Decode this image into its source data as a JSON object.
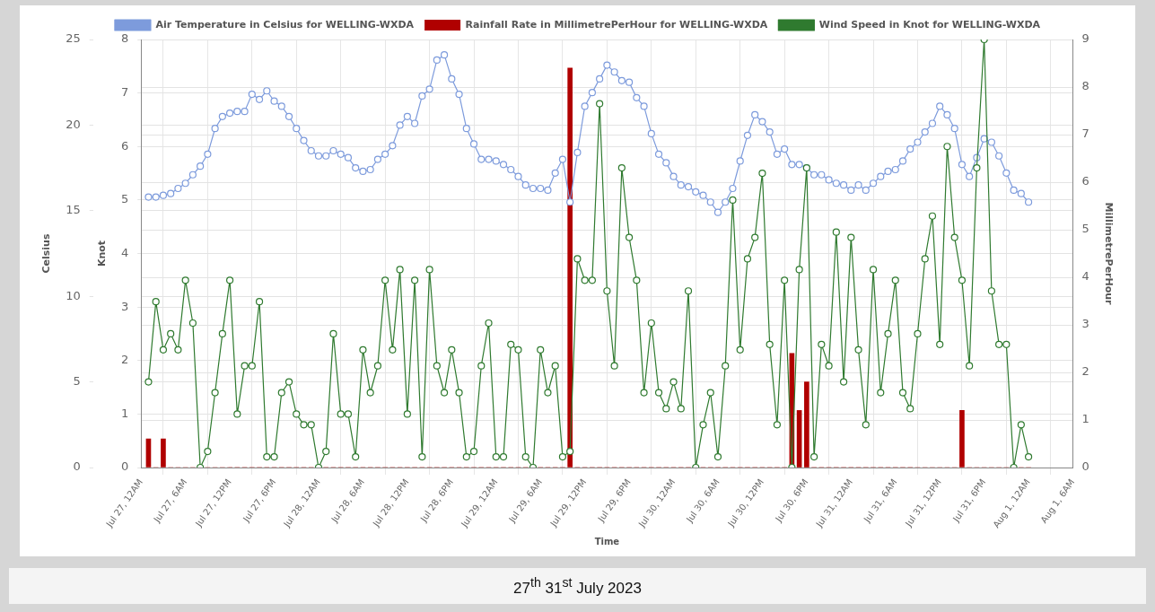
{
  "chart_data": {
    "type": "line",
    "xlabel": "Time",
    "ylabel": "Celsius",
    "y2label": "MillimetrePerHour",
    "y3label": "Knot",
    "x": [
      "2023-07-27T01:00",
      "2023-07-27T02:00",
      "2023-07-27T03:00",
      "2023-07-27T04:00",
      "2023-07-27T05:00",
      "2023-07-27T06:00",
      "2023-07-27T07:00",
      "2023-07-27T08:00",
      "2023-07-27T09:00",
      "2023-07-27T10:00",
      "2023-07-27T11:00",
      "2023-07-27T12:00",
      "2023-07-27T13:00",
      "2023-07-27T14:00",
      "2023-07-27T15:00",
      "2023-07-27T16:00",
      "2023-07-27T17:00",
      "2023-07-27T18:00",
      "2023-07-27T19:00",
      "2023-07-27T20:00",
      "2023-07-27T21:00",
      "2023-07-27T22:00",
      "2023-07-27T23:00",
      "2023-07-28T00:00",
      "2023-07-28T01:00",
      "2023-07-28T02:00",
      "2023-07-28T03:00",
      "2023-07-28T04:00",
      "2023-07-28T05:00",
      "2023-07-28T06:00",
      "2023-07-28T07:00",
      "2023-07-28T08:00",
      "2023-07-28T09:00",
      "2023-07-28T10:00",
      "2023-07-28T11:00",
      "2023-07-28T12:00",
      "2023-07-28T13:00",
      "2023-07-28T14:00",
      "2023-07-28T15:00",
      "2023-07-28T16:00",
      "2023-07-28T17:00",
      "2023-07-28T18:00",
      "2023-07-28T19:00",
      "2023-07-28T20:00",
      "2023-07-28T21:00",
      "2023-07-28T22:00",
      "2023-07-28T23:00",
      "2023-07-29T00:00",
      "2023-07-29T01:00",
      "2023-07-29T02:00",
      "2023-07-29T03:00",
      "2023-07-29T04:00",
      "2023-07-29T05:00",
      "2023-07-29T06:00",
      "2023-07-29T07:00",
      "2023-07-29T08:00",
      "2023-07-29T09:00",
      "2023-07-29T10:00",
      "2023-07-29T11:00",
      "2023-07-29T12:00",
      "2023-07-29T13:00",
      "2023-07-29T14:00",
      "2023-07-29T15:00",
      "2023-07-29T16:00",
      "2023-07-29T17:00",
      "2023-07-29T18:00",
      "2023-07-29T19:00",
      "2023-07-29T20:00",
      "2023-07-29T21:00",
      "2023-07-29T22:00",
      "2023-07-29T23:00",
      "2023-07-30T00:00",
      "2023-07-30T01:00",
      "2023-07-30T02:00",
      "2023-07-30T03:00",
      "2023-07-30T04:00",
      "2023-07-30T05:00",
      "2023-07-30T06:00",
      "2023-07-30T07:00",
      "2023-07-30T08:00",
      "2023-07-30T09:00",
      "2023-07-30T10:00",
      "2023-07-30T11:00",
      "2023-07-30T12:00",
      "2023-07-30T13:00",
      "2023-07-30T14:00",
      "2023-07-30T15:00",
      "2023-07-30T16:00",
      "2023-07-30T17:00",
      "2023-07-30T18:00",
      "2023-07-30T19:00",
      "2023-07-30T20:00",
      "2023-07-30T21:00",
      "2023-07-30T22:00",
      "2023-07-30T23:00",
      "2023-07-31T00:00",
      "2023-07-31T01:00",
      "2023-07-31T02:00",
      "2023-07-31T03:00",
      "2023-07-31T04:00",
      "2023-07-31T05:00",
      "2023-07-31T06:00",
      "2023-07-31T07:00",
      "2023-07-31T08:00",
      "2023-07-31T09:00",
      "2023-07-31T10:00",
      "2023-07-31T11:00",
      "2023-07-31T12:00",
      "2023-07-31T13:00",
      "2023-07-31T14:00",
      "2023-07-31T15:00",
      "2023-07-31T16:00",
      "2023-07-31T17:00",
      "2023-07-31T18:00",
      "2023-07-31T19:00",
      "2023-07-31T20:00",
      "2023-07-31T21:00",
      "2023-07-31T22:00",
      "2023-07-31T23:00",
      "2023-08-01T00:00"
    ],
    "series": [
      {
        "name": "Air Temperature in Celsius for WELLING-WXDA",
        "axis": "y",
        "color": "#7d9bdc",
        "values": [
          15.8,
          15.8,
          15.9,
          16.0,
          16.3,
          16.6,
          17.1,
          17.6,
          18.3,
          19.8,
          20.5,
          20.7,
          20.8,
          20.8,
          21.8,
          21.5,
          22.0,
          21.4,
          21.1,
          20.5,
          19.8,
          19.1,
          18.5,
          18.2,
          18.2,
          18.5,
          18.3,
          18.1,
          17.5,
          17.3,
          17.4,
          18.0,
          18.3,
          18.8,
          20.0,
          20.5,
          20.1,
          21.7,
          22.1,
          23.8,
          24.1,
          22.7,
          21.8,
          19.8,
          18.9,
          18.0,
          18.0,
          17.9,
          17.7,
          17.4,
          17.0,
          16.5,
          16.3,
          16.3,
          16.2,
          17.2,
          18.0,
          15.5,
          18.4,
          21.1,
          21.9,
          22.7,
          23.5,
          23.1,
          22.6,
          22.5,
          21.6,
          21.1,
          19.5,
          18.3,
          17.8,
          17.0,
          16.5,
          16.4,
          16.1,
          15.9,
          15.5,
          14.9,
          15.5,
          16.3,
          17.9,
          19.4,
          20.6,
          20.2,
          19.6,
          18.3,
          18.6,
          17.7,
          17.7,
          17.5,
          17.1,
          17.1,
          16.8,
          16.6,
          16.5,
          16.2,
          16.5,
          16.2,
          16.6,
          17.0,
          17.3,
          17.4,
          17.9,
          18.6,
          19.0,
          19.6,
          20.1,
          21.1,
          20.6,
          19.8,
          17.7,
          17.0,
          18.1,
          19.2,
          19.0,
          18.2,
          17.2,
          16.2,
          16.0,
          15.5
        ]
      },
      {
        "name": "Rainfall Rate in MillimetrePerHour for WELLING-WXDA",
        "type": "bar",
        "axis": "y2",
        "color": "#b00000",
        "values": [
          0.6,
          0,
          0.6,
          0,
          0,
          0,
          0,
          0,
          0,
          0,
          0,
          0,
          0,
          0,
          0,
          0,
          0,
          0,
          0,
          0,
          0,
          0,
          0,
          0,
          0,
          0,
          0,
          0,
          0,
          0,
          0,
          0,
          0,
          0,
          0,
          0,
          0,
          0,
          0,
          0,
          0,
          0,
          0,
          0,
          0,
          0,
          0,
          0,
          0,
          0,
          0,
          0,
          0,
          0,
          0,
          0,
          0,
          8.4,
          0,
          0,
          0,
          0,
          0,
          0,
          0,
          0,
          0,
          0,
          0,
          0,
          0,
          0,
          0,
          0,
          0,
          0,
          0,
          0,
          0,
          0,
          0,
          0,
          0,
          0,
          0,
          0,
          0,
          2.4,
          1.2,
          1.8,
          0,
          0,
          0,
          0,
          0,
          0,
          0,
          0,
          0,
          0,
          0,
          0,
          0,
          0,
          0,
          0,
          0,
          0,
          0,
          0,
          1.2,
          0,
          0,
          0,
          0,
          0,
          0,
          0,
          0,
          0
        ]
      },
      {
        "name": "Wind Speed in Knot for WELLING-WXDA",
        "axis": "y3",
        "color": "#2f7a2f",
        "values": [
          1.6,
          3.1,
          2.2,
          2.5,
          2.2,
          3.5,
          2.7,
          0,
          0.3,
          1.4,
          2.5,
          3.5,
          1.0,
          1.9,
          1.9,
          3.1,
          0.2,
          0.2,
          1.4,
          1.6,
          1.0,
          0.8,
          0.8,
          0,
          0.3,
          2.5,
          1.0,
          1.0,
          0.2,
          2.2,
          1.4,
          1.9,
          3.5,
          2.2,
          3.7,
          1.0,
          3.5,
          0.2,
          3.7,
          1.9,
          1.4,
          2.2,
          1.4,
          0.2,
          0.3,
          1.9,
          2.7,
          0.2,
          0.2,
          2.3,
          2.2,
          0.2,
          0,
          2.2,
          1.4,
          1.9,
          0.2,
          0.3,
          3.9,
          3.5,
          3.5,
          6.8,
          3.3,
          1.9,
          5.6,
          4.3,
          3.5,
          1.4,
          2.7,
          1.4,
          1.1,
          1.6,
          1.1,
          3.3,
          0,
          0.8,
          1.4,
          0.2,
          1.9,
          5.0,
          2.2,
          3.9,
          4.3,
          5.5,
          2.3,
          0.8,
          3.5,
          0,
          3.7,
          5.6,
          0.2,
          2.3,
          1.9,
          4.4,
          1.6,
          4.3,
          2.2,
          0.8,
          3.7,
          1.4,
          2.5,
          3.5,
          1.4,
          1.1,
          2.5,
          3.9,
          4.7,
          2.3,
          6.0,
          4.3,
          3.5,
          1.9,
          5.6,
          8.0,
          3.3,
          2.3,
          2.3,
          0,
          0.8,
          0.2
        ]
      }
    ],
    "xlim": [
      "2023-07-27T00:00",
      "2023-08-01T06:00"
    ],
    "xticks": [
      {
        "value": "2023-07-27T00:00",
        "label": "Jul 27, 12AM"
      },
      {
        "value": "2023-07-27T06:00",
        "label": "Jul 27, 6AM"
      },
      {
        "value": "2023-07-27T12:00",
        "label": "Jul 27, 12PM"
      },
      {
        "value": "2023-07-27T18:00",
        "label": "Jul 27, 6PM"
      },
      {
        "value": "2023-07-28T00:00",
        "label": "Jul 28, 12AM"
      },
      {
        "value": "2023-07-28T06:00",
        "label": "Jul 28, 6AM"
      },
      {
        "value": "2023-07-28T12:00",
        "label": "Jul 28, 12PM"
      },
      {
        "value": "2023-07-28T18:00",
        "label": "Jul 28, 6PM"
      },
      {
        "value": "2023-07-29T00:00",
        "label": "Jul 29, 12AM"
      },
      {
        "value": "2023-07-29T06:00",
        "label": "Jul 29, 6AM"
      },
      {
        "value": "2023-07-29T12:00",
        "label": "Jul 29, 12PM"
      },
      {
        "value": "2023-07-29T18:00",
        "label": "Jul 29, 6PM"
      },
      {
        "value": "2023-07-30T00:00",
        "label": "Jul 30, 12AM"
      },
      {
        "value": "2023-07-30T06:00",
        "label": "Jul 30, 6AM"
      },
      {
        "value": "2023-07-30T12:00",
        "label": "Jul 30, 12PM"
      },
      {
        "value": "2023-07-30T18:00",
        "label": "Jul 30, 6PM"
      },
      {
        "value": "2023-07-31T00:00",
        "label": "Jul 31, 12AM"
      },
      {
        "value": "2023-07-31T06:00",
        "label": "Jul 31, 6AM"
      },
      {
        "value": "2023-07-31T12:00",
        "label": "Jul 31, 12PM"
      },
      {
        "value": "2023-07-31T18:00",
        "label": "Jul 31, 6PM"
      },
      {
        "value": "2023-08-01T00:00",
        "label": "Aug 1, 12AM"
      },
      {
        "value": "2023-08-01T06:00",
        "label": "Aug 1, 6AM"
      }
    ],
    "ylim": [
      0,
      25
    ],
    "yticks": [
      0,
      5,
      10,
      15,
      20,
      25
    ],
    "y2lim": [
      0,
      9
    ],
    "y2ticks": [
      0,
      1,
      2,
      3,
      4,
      5,
      6,
      7,
      8,
      9
    ],
    "y3lim": [
      0,
      8
    ],
    "y3ticks": [
      0,
      1,
      2,
      3,
      4,
      5,
      6,
      7,
      8
    ],
    "grid": true,
    "legend": "top",
    "marker": "circle",
    "line_style": "solid",
    "annotations": [
      "27$^{th}$ 31$^{st}$ July 2023"
    ]
  }
}
